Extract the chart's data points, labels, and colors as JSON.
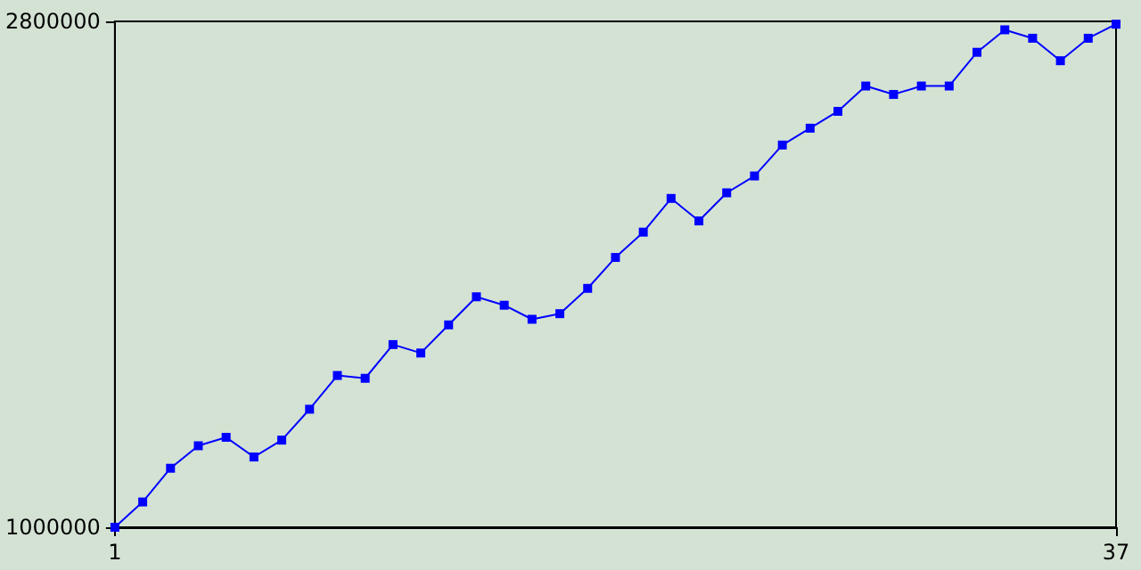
{
  "chart_data": {
    "type": "line",
    "x": [
      1,
      2,
      3,
      4,
      5,
      6,
      7,
      8,
      9,
      10,
      11,
      12,
      13,
      14,
      15,
      16,
      17,
      18,
      19,
      20,
      21,
      22,
      23,
      24,
      25,
      26,
      27,
      28,
      29,
      30,
      31,
      32,
      33,
      34,
      35,
      36,
      37
    ],
    "series": [
      {
        "color": "#0000ff",
        "values": [
          1000000,
          1090000,
          1210000,
          1290000,
          1320000,
          1250000,
          1310000,
          1420000,
          1540000,
          1530000,
          1650000,
          1620000,
          1720000,
          1820000,
          1790000,
          1740000,
          1760000,
          1850000,
          1960000,
          2050000,
          2170000,
          2090000,
          2190000,
          2250000,
          2360000,
          2420000,
          2480000,
          2570000,
          2540000,
          2570000,
          2570000,
          2690000,
          2770000,
          2740000,
          2660000,
          2740000,
          2790000
        ]
      }
    ],
    "xlim": [
      1,
      37
    ],
    "xticks": [
      1,
      37
    ],
    "ylim": [
      1000000,
      2800000
    ],
    "yticks": [
      1000000,
      2800000
    ],
    "grid": false,
    "marker": "square",
    "line_style": "solid"
  }
}
